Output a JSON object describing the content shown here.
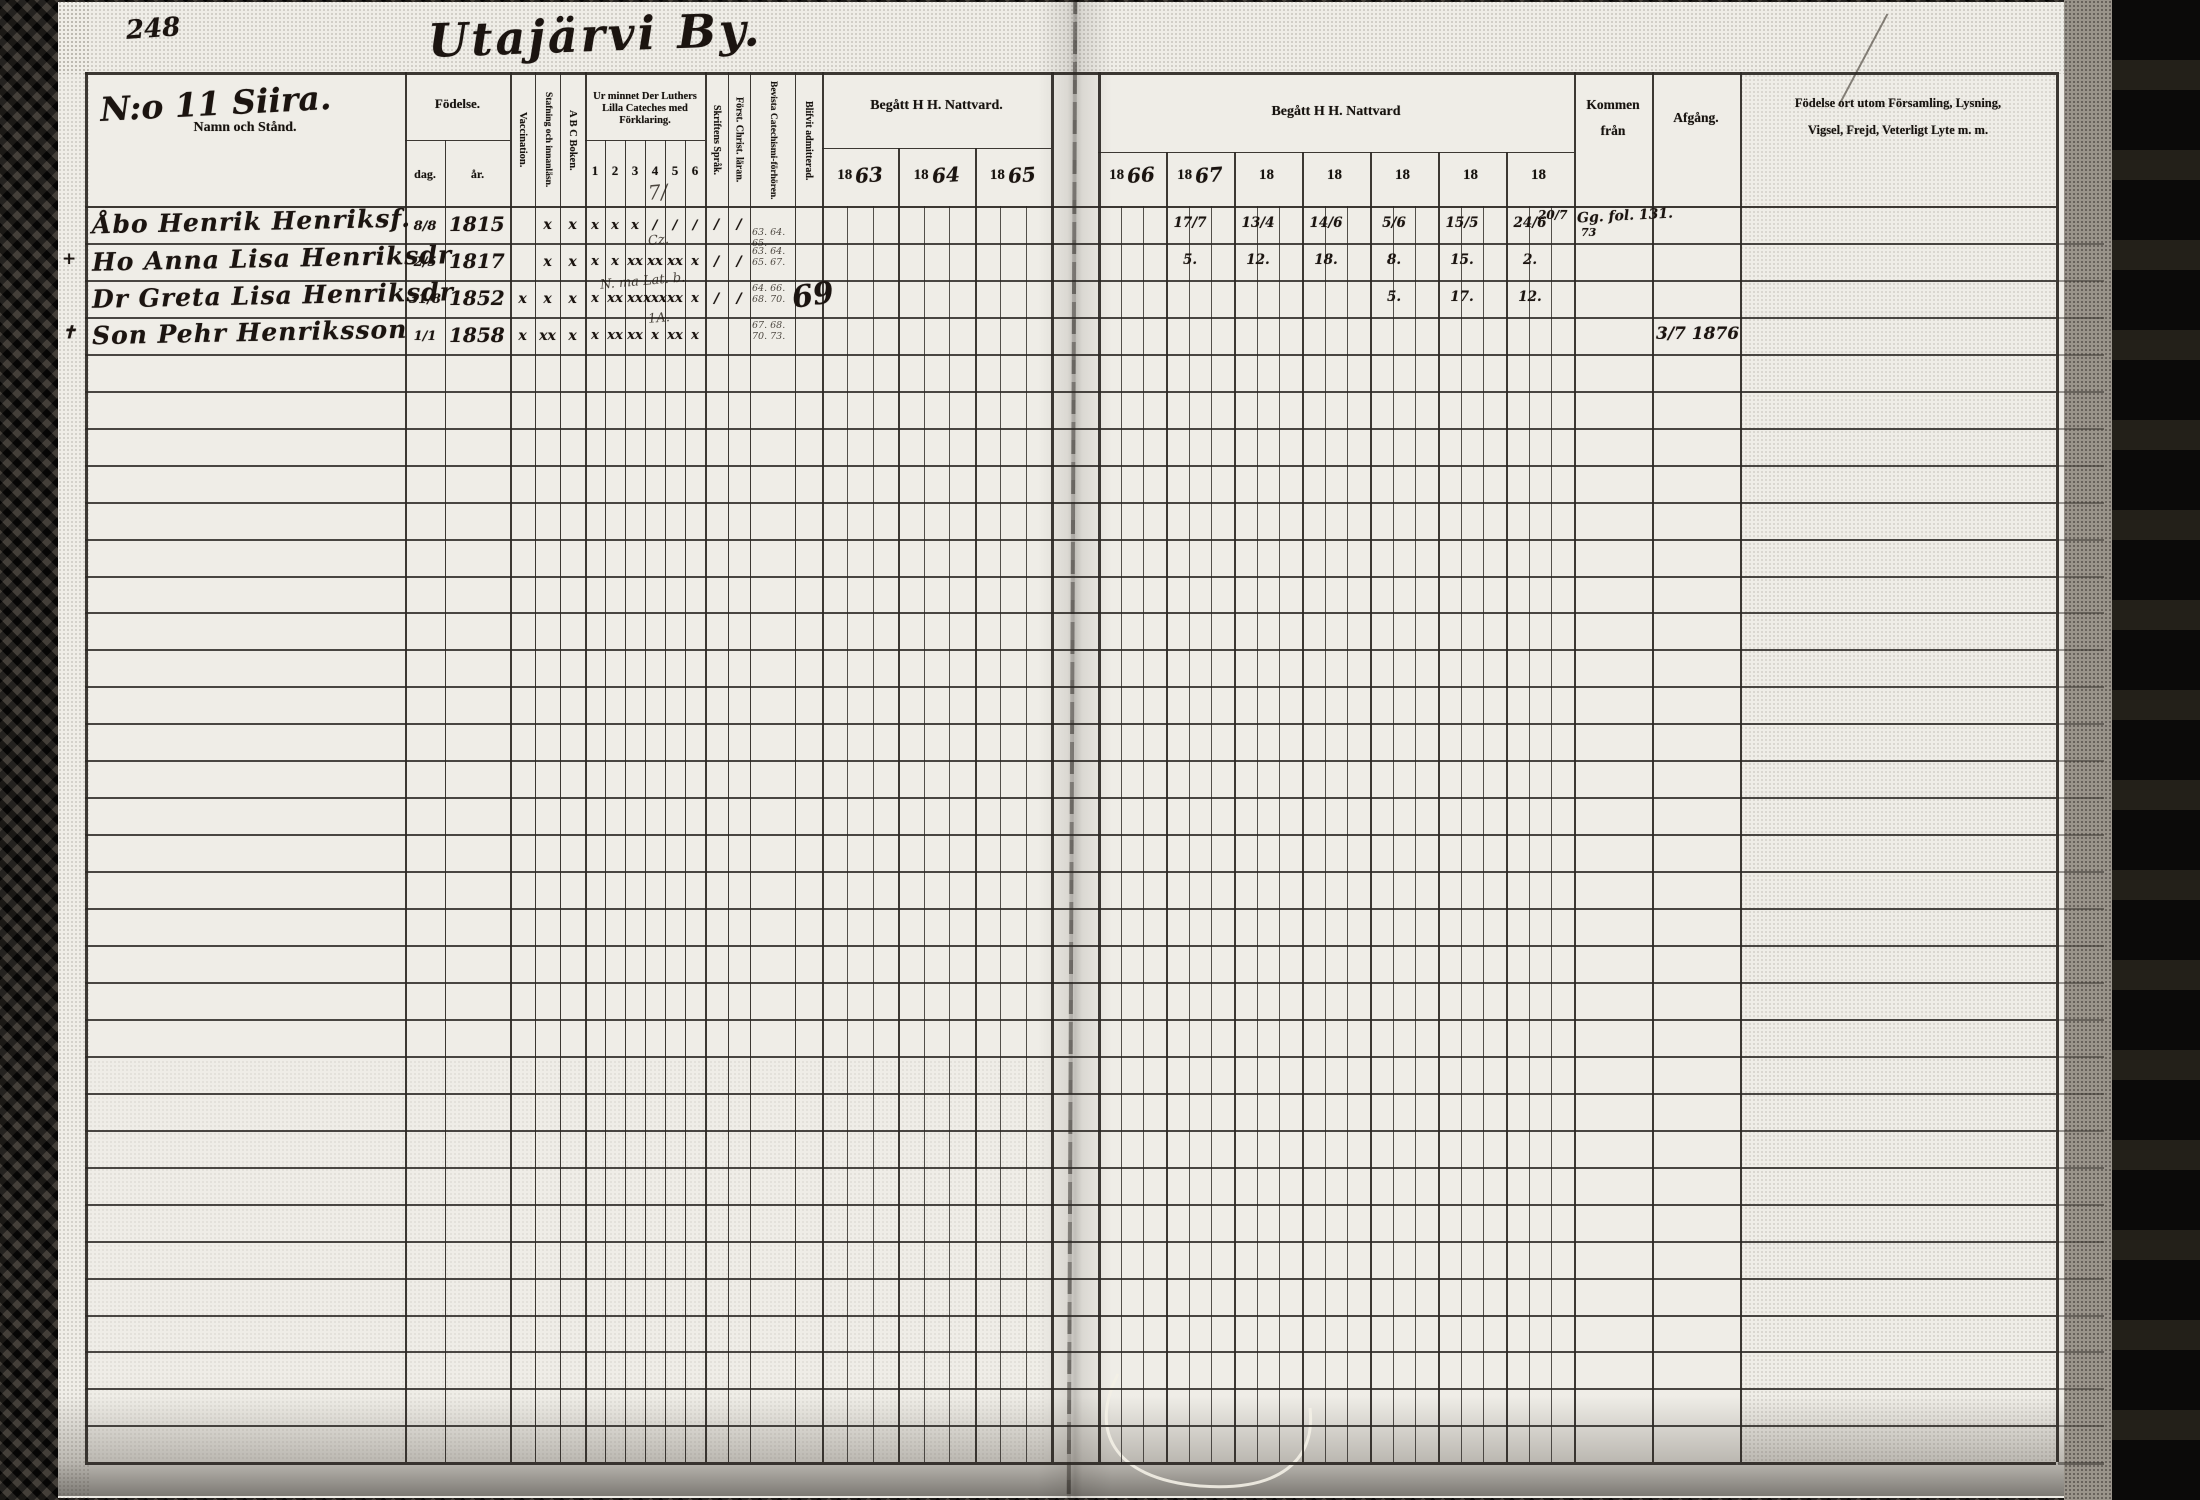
{
  "page_number": "248",
  "title": "Utajärvi By.",
  "left_header": {
    "farm_no": "N:o 11 Siira.",
    "name_col": "Namn och Stånd.",
    "birth": "Födelse.",
    "birth_day": "dag.",
    "birth_year": "år.",
    "vaccination": "Vaccination.",
    "spelling": "Stafning och innanläsn.",
    "abc_book": "A B C Boken.",
    "luthers": "Ur minnet Der Luthers Lilla Cateches med Förklaring.",
    "luthers_cols": [
      "1",
      "2",
      "3",
      "4",
      "5",
      "6"
    ],
    "script_language": "Skriftens Språk.",
    "christianity": "Först. Christ. läran.",
    "catechism_meetings": "Bevista Catechismi-förhören.",
    "admitted": "Blifvit admitterad.",
    "communion": "Begått H H. Nattvard.",
    "years": [
      {
        "printed": "18",
        "written": "63"
      },
      {
        "printed": "18",
        "written": "64"
      },
      {
        "printed": "18",
        "written": "65"
      }
    ]
  },
  "right_header": {
    "communion": "Begått H H. Nattvard",
    "years": [
      {
        "printed": "18",
        "written": "66"
      },
      {
        "printed": "18",
        "written": "67"
      },
      {
        "printed": "18",
        "written": ""
      },
      {
        "printed": "18",
        "written": ""
      },
      {
        "printed": "18",
        "written": ""
      },
      {
        "printed": "18",
        "written": ""
      },
      {
        "printed": "18",
        "written": ""
      }
    ],
    "come_from": "Kommen\nfrån",
    "departure": "Afgång.",
    "notes": "Födelse ort utom Församling, Lysning,\nVigsel, Frejd, Veterligt Lyte m. m."
  },
  "rows": [
    {
      "margin_mark": "",
      "name": "Åbo Henrik Henriksf.",
      "birth_day": "8/8",
      "birth_year": "1815",
      "vacc": "",
      "staf": "x",
      "abc": "x",
      "cat": [
        "x",
        "x",
        "x",
        "/",
        "/",
        "/"
      ],
      "lang": "/",
      "christ": "/",
      "scribble": "7/",
      "catechism_years": "63. 64. 65.",
      "admitted": "",
      "communion": [
        "",
        "17/7",
        "13/4",
        "14/6",
        "5/6",
        "15/5",
        "24/6"
      ],
      "communion_extra": "20/7",
      "come_from": "Gg. fol. 131.",
      "come_from_note": "73",
      "departure": ""
    },
    {
      "margin_mark": "+",
      "name": "Ho Anna Lisa Henriksdr",
      "birth_day": "2/5",
      "birth_year": "1817",
      "vacc": "",
      "staf": "x",
      "abc": "x",
      "cat": [
        "x",
        "x",
        "xx",
        "xx",
        "xx",
        "x"
      ],
      "lang": "/",
      "christ": "/",
      "scribble": "Cz.",
      "catechism_years": "63. 64.\n65. 67.",
      "admitted": "",
      "communion": [
        "",
        "5.",
        "12.",
        "18.",
        "8.",
        "15.",
        "2."
      ],
      "communion_extra": "",
      "come_from": "",
      "come_from_note": "",
      "departure": ""
    },
    {
      "margin_mark": "",
      "name": "Dr Greta Lisa Henriksdr",
      "birth_day": "31/8",
      "birth_year": "1852",
      "vacc": "x",
      "staf": "x",
      "abc": "x",
      "cat": [
        "x",
        "xx",
        "xx",
        "xxx",
        "xx",
        "x"
      ],
      "lang": "/",
      "christ": "/",
      "scribble": "N. ma Lat. b.",
      "catechism_years": "64. 66.\n68. 70.",
      "admitted": "69",
      "communion": [
        "",
        "",
        "",
        "",
        "5.",
        "17.",
        "12."
      ],
      "communion_extra": "",
      "come_from": "",
      "come_from_note": "",
      "departure": ""
    },
    {
      "margin_mark": "✝",
      "name": "Son Pehr Henriksson",
      "birth_day": "1/1",
      "birth_year": "1858",
      "vacc": "x",
      "staf": "xx",
      "abc": "x",
      "cat": [
        "x",
        "xx",
        "xx",
        "x",
        "xx",
        "x"
      ],
      "lang": "",
      "christ": "",
      "scribble": "1A.",
      "catechism_years": "67. 68.\n70. 73.",
      "admitted": "",
      "communion": [
        "",
        "",
        "",
        "",
        "",
        "",
        ""
      ],
      "communion_extra": "",
      "come_from": "",
      "come_from_note": "",
      "departure": "3/7 1876"
    }
  ]
}
